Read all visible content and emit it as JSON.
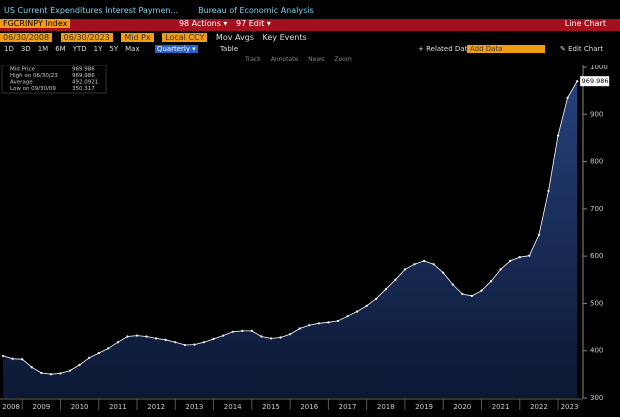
{
  "ui": {
    "title": "US Current Expenditures Interest Paymen...",
    "source": "Bureau of Economic Analysis",
    "ticker": "FGCRINPY Index",
    "actions": "98 Actions ▾",
    "edit": "97 Edit ▾",
    "chart_kind": "Line Chart",
    "start": "06/30/2008",
    "end": "06/30/2023",
    "field": "Mid Px",
    "currency": "Local CCY",
    "mov_avgs": "Mov Avgs",
    "key_events": "Key Events",
    "ranges": [
      "1D",
      "3D",
      "1M",
      "6M",
      "YTD",
      "1Y",
      "5Y",
      "Max"
    ],
    "period": "Quarterly ▾",
    "table": "Table",
    "related": "+ Related Dat",
    "add_data": "Add Data",
    "edit_chart": "✎ Edit Chart",
    "tools": [
      "Track",
      "Annotate",
      "News",
      "Zoom"
    ]
  },
  "chart_data": {
    "type": "line",
    "stats": [
      {
        "name": "Mid Price",
        "value": "969.986"
      },
      {
        "name": "High on 06/30/23",
        "value": "969.986"
      },
      {
        "name": "Average",
        "value": "492.0921"
      },
      {
        "name": "Low on 09/30/09",
        "value": "350.317"
      }
    ],
    "last_label": "969.986",
    "x": [
      2008.5,
      2008.75,
      2009,
      2009.25,
      2009.5,
      2009.75,
      2010,
      2010.25,
      2010.5,
      2010.75,
      2011,
      2011.25,
      2011.5,
      2011.75,
      2012,
      2012.25,
      2012.5,
      2012.75,
      2013,
      2013.25,
      2013.5,
      2013.75,
      2014,
      2014.25,
      2014.5,
      2014.75,
      2015,
      2015.25,
      2015.5,
      2015.75,
      2016,
      2016.25,
      2016.5,
      2016.75,
      2017,
      2017.25,
      2017.5,
      2017.75,
      2018,
      2018.25,
      2018.5,
      2018.75,
      2019,
      2019.25,
      2019.5,
      2019.75,
      2020,
      2020.25,
      2020.5,
      2020.75,
      2021,
      2021.25,
      2021.5,
      2021.75,
      2022,
      2022.25,
      2022.5,
      2022.75,
      2023,
      2023.25,
      2023.5
    ],
    "series": [
      {
        "name": "Mid Price",
        "color": "#ffffff",
        "values": [
          389,
          383,
          382,
          365,
          353,
          350.317,
          352,
          358,
          370,
          385,
          395,
          405,
          418,
          430,
          432,
          430,
          426,
          423,
          418,
          412,
          413,
          418,
          425,
          432,
          440,
          442,
          442,
          430,
          426,
          428,
          435,
          447,
          454,
          458,
          460,
          463,
          473,
          483,
          495,
          510,
          530,
          550,
          572,
          583,
          590,
          583,
          565,
          540,
          520,
          516,
          527,
          547,
          572,
          590,
          598,
          601,
          645,
          738,
          855,
          935,
          969.986
        ]
      }
    ],
    "xlim": [
      2008.42,
      2023.6
    ],
    "xticks": [
      2008,
      2009,
      2010,
      2011,
      2012,
      2013,
      2014,
      2015,
      2016,
      2017,
      2018,
      2019,
      2020,
      2021,
      2022,
      2023
    ],
    "ylim": [
      300,
      1000
    ],
    "yticks": [
      300,
      400,
      500,
      600,
      700,
      800,
      900,
      1000
    ],
    "grid": false
  }
}
